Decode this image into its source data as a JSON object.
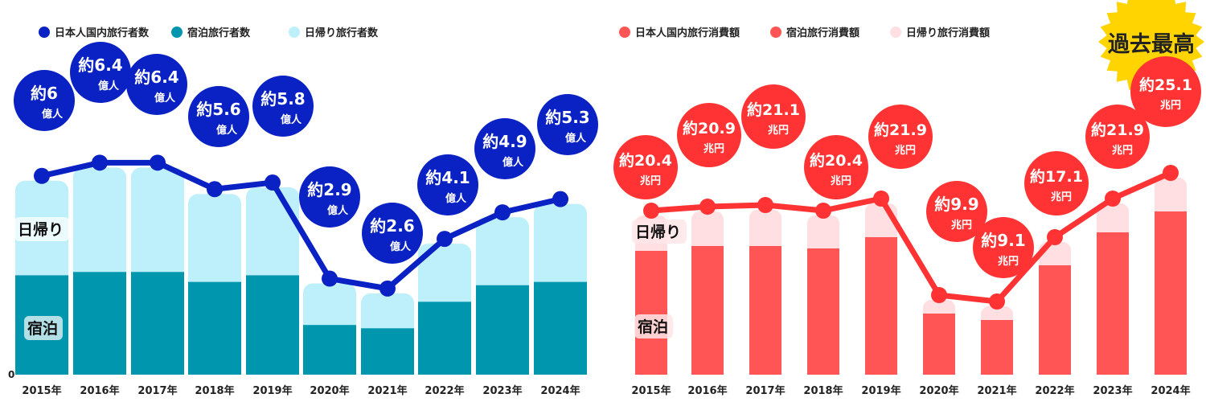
{
  "chart_data": [
    {
      "type": "bar",
      "stacked": true,
      "overlay_line": true,
      "categories": [
        "2015年",
        "2016年",
        "2017年",
        "2018年",
        "2019年",
        "2020年",
        "2021年",
        "2022年",
        "2023年",
        "2024年"
      ],
      "legend": [
        "日本人国内旅行者数",
        "宿泊旅行者数",
        "日帰り旅行者数"
      ],
      "series": [
        {
          "name": "日本人国内旅行者数",
          "type": "line",
          "values": [
            6.0,
            6.4,
            6.4,
            5.6,
            5.8,
            2.9,
            2.6,
            4.1,
            4.9,
            5.3
          ],
          "color": "#0a22c4"
        },
        {
          "name": "宿泊旅行者数",
          "type": "bar",
          "values": [
            3.0,
            3.1,
            3.1,
            2.8,
            3.0,
            1.5,
            1.4,
            2.2,
            2.7,
            2.8
          ],
          "color": "#0096ae"
        },
        {
          "name": "日帰り旅行者数",
          "type": "bar",
          "values": [
            3.0,
            3.3,
            3.3,
            2.8,
            2.8,
            1.4,
            1.2,
            1.9,
            2.2,
            2.5
          ],
          "color": "#bdf0fb"
        }
      ],
      "data_labels": [
        "約6",
        "約6.4",
        "約6.4",
        "約5.6",
        "約5.8",
        "約2.9",
        "約2.6",
        "約4.1",
        "約4.9",
        "約5.3"
      ],
      "unit": "億人",
      "segment_labels": {
        "day": "日帰り",
        "overnight": "宿泊"
      },
      "y_zero_label": "0",
      "ylim": [
        0,
        6.5
      ]
    },
    {
      "type": "bar",
      "stacked": true,
      "overlay_line": true,
      "categories": [
        "2015年",
        "2016年",
        "2017年",
        "2018年",
        "2019年",
        "2020年",
        "2021年",
        "2022年",
        "2023年",
        "2024年"
      ],
      "legend": [
        "日本人国内旅行消費額",
        "宿泊旅行消費額",
        "日帰り旅行消費額"
      ],
      "series": [
        {
          "name": "日本人国内旅行消費額",
          "type": "line",
          "values": [
            20.4,
            20.9,
            21.1,
            20.4,
            21.9,
            9.9,
            9.1,
            17.1,
            21.9,
            25.1
          ],
          "color": "#ff3333"
        },
        {
          "name": "宿泊旅行消費額",
          "type": "bar",
          "values": [
            15.4,
            16.0,
            16.0,
            15.7,
            17.1,
            7.6,
            6.8,
            13.6,
            17.7,
            20.3
          ],
          "color": "#ff5555"
        },
        {
          "name": "日帰り旅行消費額",
          "type": "bar",
          "values": [
            5.0,
            4.9,
            5.1,
            4.7,
            4.8,
            2.3,
            2.3,
            3.5,
            4.2,
            4.8
          ],
          "color": "#ffdfe2"
        }
      ],
      "data_labels": [
        "約20.4",
        "約20.9",
        "約21.1",
        "約20.4",
        "約21.9",
        "約9.9",
        "約9.1",
        "約17.1",
        "約21.9",
        "約25.1"
      ],
      "unit": "兆円",
      "segment_labels": {
        "day": "日帰り",
        "overnight": "宿泊"
      },
      "badge": "過去最高",
      "ylim": [
        0,
        25.5
      ]
    }
  ]
}
